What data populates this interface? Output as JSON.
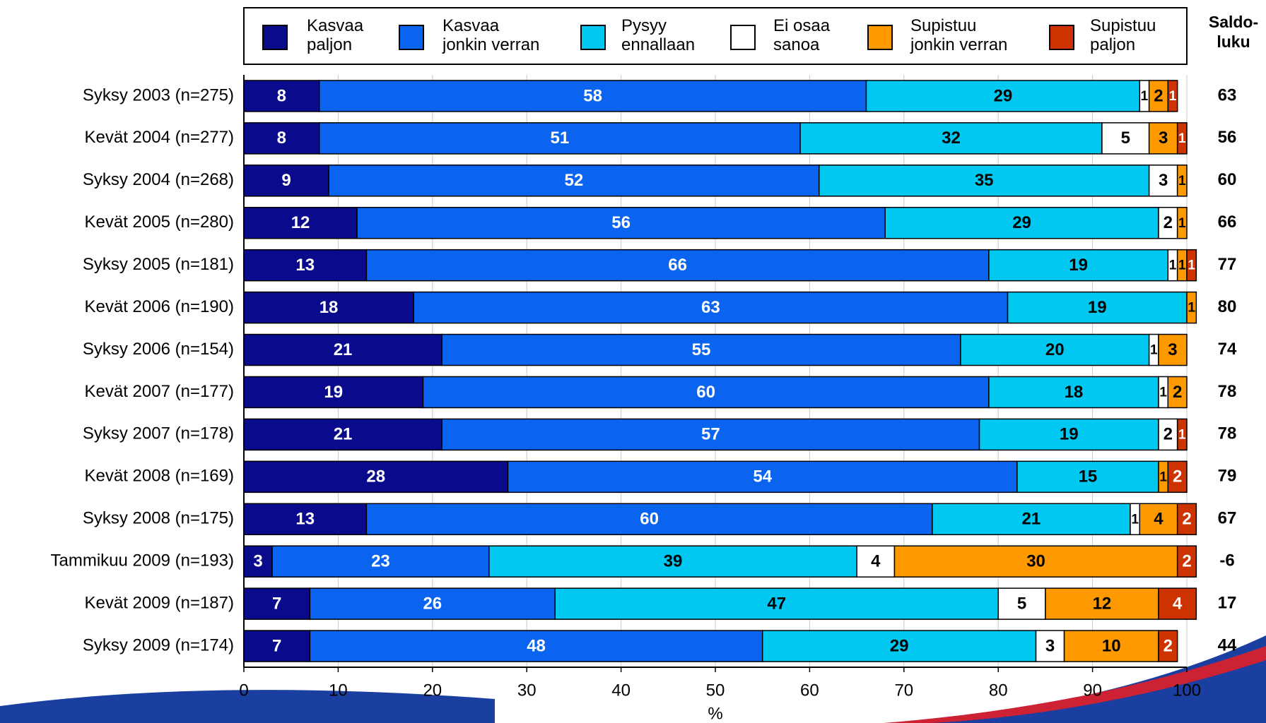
{
  "chart_data": {
    "type": "stacked-bar-horizontal",
    "categories": [
      "Syksy 2003 (n=275)",
      "Kevät 2004 (n=277)",
      "Syksy 2004 (n=268)",
      "Kevät 2005 (n=280)",
      "Syksy 2005 (n=181)",
      "Kevät 2006 (n=190)",
      "Syksy 2006 (n=154)",
      "Kevät 2007 (n=177)",
      "Syksy 2007 (n=178)",
      "Kevät 2008 (n=169)",
      "Syksy 2008 (n=175)",
      "Tammikuu 2009 (n=193)",
      "Kevät 2009 (n=187)",
      "Syksy 2009 (n=174)"
    ],
    "series": [
      {
        "name": "Kasvaa paljon",
        "color": "#0a0a8c",
        "values": [
          8,
          8,
          9,
          12,
          13,
          18,
          21,
          19,
          21,
          28,
          13,
          3,
          7,
          7
        ]
      },
      {
        "name": "Kasvaa jonkin verran",
        "color": "#0a64f0",
        "values": [
          58,
          51,
          52,
          56,
          66,
          63,
          55,
          60,
          57,
          54,
          60,
          23,
          26,
          48
        ]
      },
      {
        "name": "Pysyy ennallaan",
        "color": "#00c8f0",
        "values": [
          29,
          32,
          35,
          29,
          19,
          19,
          20,
          18,
          19,
          15,
          21,
          39,
          47,
          29
        ]
      },
      {
        "name": "Ei osaa sanoa",
        "color": "#ffffff",
        "values": [
          1,
          5,
          3,
          2,
          1,
          null,
          1,
          1,
          2,
          null,
          1,
          4,
          5,
          3
        ]
      },
      {
        "name": "Supistuu jonkin verran",
        "color": "#ff9900",
        "values": [
          2,
          3,
          1,
          1,
          1,
          1,
          3,
          2,
          null,
          1,
          4,
          30,
          12,
          10
        ]
      },
      {
        "name": "Supistuu paljon",
        "color": "#cc3300",
        "values": [
          1,
          1,
          null,
          null,
          1,
          null,
          null,
          null,
          1,
          2,
          2,
          2,
          4,
          2
        ]
      }
    ],
    "xlabel": "%",
    "xlim": [
      0,
      100
    ],
    "xticks": [
      0,
      10,
      20,
      30,
      40,
      50,
      60,
      70,
      80,
      90,
      100
    ],
    "grid": true,
    "side_title_lines": [
      "Saldo-",
      "luku"
    ],
    "side_values": [
      63,
      56,
      60,
      66,
      77,
      80,
      74,
      78,
      78,
      79,
      67,
      -6,
      17,
      44
    ]
  }
}
